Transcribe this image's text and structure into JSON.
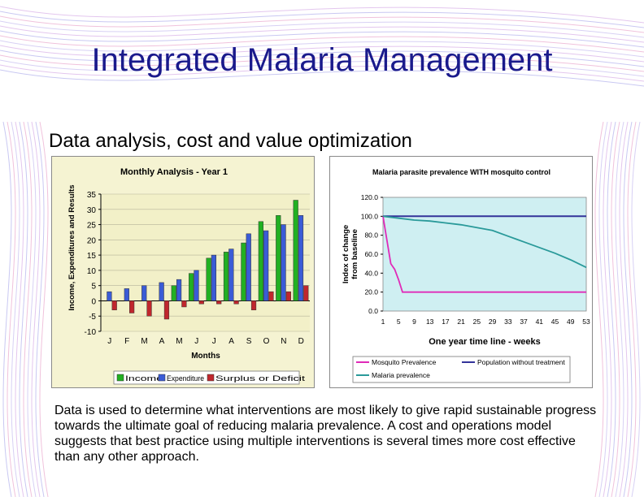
{
  "slide": {
    "title": "Integrated Malaria Management",
    "subtitle": "Data analysis, cost and value optimization",
    "body": "Data is used to determine what interventions are most likely to give rapid sustainable progress towards the ultimate goal of reducing malaria prevalence. A cost and operations model suggests that best practice using multiple interventions is several times more cost effective than any other approach."
  },
  "colors": {
    "title": "#1a1a8c",
    "income": "#22b022",
    "expenditure": "#3a5bd6",
    "surplus": "#c0272d",
    "plot_bg_left": "#f2f0c8",
    "chart_bg_left": "#f5f3d2",
    "plot_bg_right": "#cfeff2",
    "mosquito": "#e02ab8",
    "population": "#33339a",
    "malaria": "#2a9a9a"
  },
  "chart_data": [
    {
      "type": "bar",
      "title": "Monthly Analysis - Year 1",
      "xlabel": "Months",
      "ylabel": "Income, Expenditures and Results",
      "categories": [
        "J",
        "F",
        "M",
        "A",
        "M",
        "J",
        "J",
        "A",
        "S",
        "O",
        "N",
        "D"
      ],
      "ylim": [
        -10,
        35
      ],
      "yticks": [
        -10,
        -5,
        0,
        5,
        10,
        15,
        20,
        25,
        30,
        35
      ],
      "series": [
        {
          "name": "Income",
          "values": [
            0,
            0,
            0,
            0,
            5,
            9,
            14,
            16,
            19,
            26,
            28,
            33
          ]
        },
        {
          "name": "Expenditure",
          "values": [
            3,
            4,
            5,
            6,
            7,
            10,
            15,
            17,
            22,
            23,
            25,
            28
          ]
        },
        {
          "name": "Surplus or Deficit",
          "values": [
            -3,
            -4,
            -5,
            -6,
            -2,
            -1,
            -1,
            -1,
            -3,
            3,
            3,
            5
          ]
        }
      ],
      "legend": [
        "Income",
        "Expenditure",
        "Surplus or Deficit"
      ],
      "legend_position": "bottom"
    },
    {
      "type": "line",
      "title": "Malaria parasite prevalence WITH mosquito control",
      "xlabel": "One year time line - weeks",
      "ylabel": "Index of change from baseline",
      "xticks": [
        "1",
        "5",
        "9",
        "13",
        "17",
        "21",
        "25",
        "29",
        "33",
        "37",
        "41",
        "45",
        "49",
        "53"
      ],
      "yticks": [
        "0.0",
        "20.0",
        "40.0",
        "60.0",
        "80.0",
        "100.0",
        "120.0"
      ],
      "xlim": [
        1,
        53
      ],
      "ylim": [
        0,
        120
      ],
      "series": [
        {
          "name": "Mosquito Prevalence",
          "x": [
            1,
            2,
            3,
            4,
            5,
            6,
            7,
            53
          ],
          "y": [
            100,
            75,
            50,
            44,
            33,
            20,
            20,
            20
          ]
        },
        {
          "name": "Population without treatment",
          "x": [
            1,
            53
          ],
          "y": [
            100,
            100
          ]
        },
        {
          "name": "Malaria prevalence",
          "x": [
            1,
            5,
            9,
            13,
            17,
            21,
            25,
            29,
            33,
            37,
            41,
            45,
            49,
            53
          ],
          "y": [
            100,
            98,
            96,
            95,
            93,
            91,
            88,
            85,
            79,
            73,
            67,
            61,
            54,
            46
          ]
        }
      ],
      "legend": [
        "Mosquito Prevalence",
        "Population without treatment",
        "Malaria prevalence"
      ],
      "legend_position": "bottom"
    }
  ]
}
